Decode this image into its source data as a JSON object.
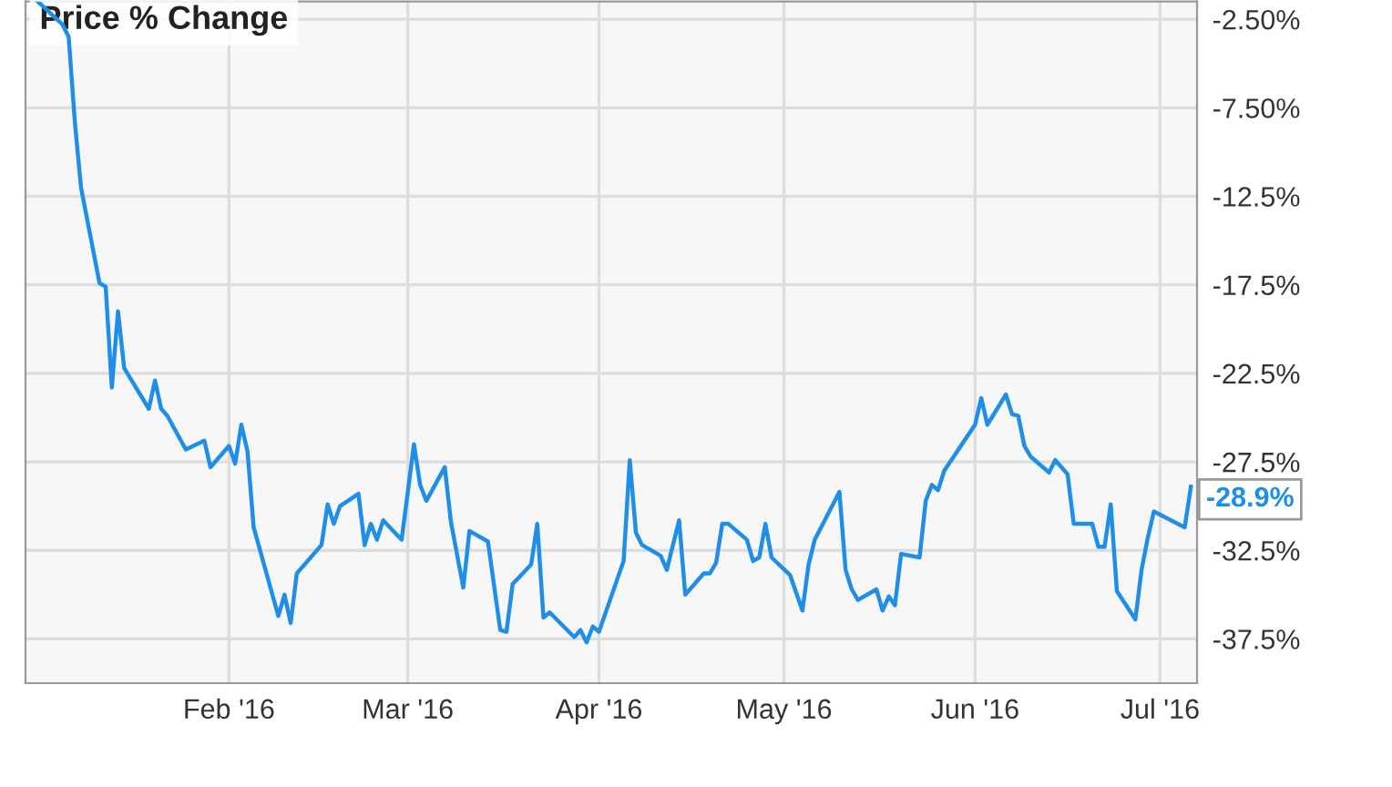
{
  "chart_data": {
    "type": "line",
    "title": "Price % Change",
    "x": [
      "2016-01-01",
      "2016-01-05",
      "2016-01-06",
      "2016-01-07",
      "2016-01-08",
      "2016-01-11",
      "2016-01-12",
      "2016-01-13",
      "2016-01-14",
      "2016-01-15",
      "2016-01-19",
      "2016-01-20",
      "2016-01-21",
      "2016-01-22",
      "2016-01-25",
      "2016-01-28",
      "2016-01-29",
      "2016-02-01",
      "2016-02-02",
      "2016-02-03",
      "2016-02-04",
      "2016-02-05",
      "2016-02-09",
      "2016-02-10",
      "2016-02-11",
      "2016-02-12",
      "2016-02-16",
      "2016-02-17",
      "2016-02-18",
      "2016-02-19",
      "2016-02-22",
      "2016-02-23",
      "2016-02-24",
      "2016-02-25",
      "2016-02-26",
      "2016-02-29",
      "2016-03-02",
      "2016-03-03",
      "2016-03-04",
      "2016-03-07",
      "2016-03-08",
      "2016-03-10",
      "2016-03-11",
      "2016-03-14",
      "2016-03-16",
      "2016-03-17",
      "2016-03-18",
      "2016-03-21",
      "2016-03-22",
      "2016-03-23",
      "2016-03-24",
      "2016-03-28",
      "2016-03-29",
      "2016-03-30",
      "2016-03-31",
      "2016-04-01",
      "2016-04-05",
      "2016-04-06",
      "2016-04-07",
      "2016-04-08",
      "2016-04-11",
      "2016-04-12",
      "2016-04-14",
      "2016-04-15",
      "2016-04-18",
      "2016-04-19",
      "2016-04-20",
      "2016-04-21",
      "2016-04-22",
      "2016-04-25",
      "2016-04-26",
      "2016-04-27",
      "2016-04-28",
      "2016-04-29",
      "2016-05-02",
      "2016-05-04",
      "2016-05-05",
      "2016-05-06",
      "2016-05-10",
      "2016-05-11",
      "2016-05-12",
      "2016-05-13",
      "2016-05-16",
      "2016-05-17",
      "2016-05-18",
      "2016-05-19",
      "2016-05-20",
      "2016-05-23",
      "2016-05-24",
      "2016-05-25",
      "2016-05-26",
      "2016-05-27",
      "2016-06-01",
      "2016-06-02",
      "2016-06-03",
      "2016-06-06",
      "2016-06-07",
      "2016-06-08",
      "2016-06-09",
      "2016-06-10",
      "2016-06-13",
      "2016-06-14",
      "2016-06-16",
      "2016-06-17",
      "2016-06-20",
      "2016-06-21",
      "2016-06-22",
      "2016-06-23",
      "2016-06-24",
      "2016-06-27",
      "2016-06-28",
      "2016-06-29",
      "2016-06-30",
      "2016-07-05",
      "2016-07-06"
    ],
    "series": [
      {
        "color": "#1e8ee8",
        "values": [
          -1.5,
          -2.8,
          -3.5,
          -8.3,
          -12.0,
          -17.4,
          -17.6,
          -23.3,
          -19.0,
          -22.2,
          -24.5,
          -22.9,
          -24.5,
          -24.9,
          -26.8,
          -26.3,
          -27.8,
          -26.6,
          -27.6,
          -25.4,
          -26.9,
          -31.2,
          -36.2,
          -35.0,
          -36.6,
          -33.8,
          -32.2,
          -29.9,
          -31.0,
          -30.0,
          -29.3,
          -32.2,
          -31.0,
          -31.9,
          -30.8,
          -31.9,
          -26.5,
          -28.8,
          -29.7,
          -27.8,
          -30.9,
          -34.6,
          -31.4,
          -32.0,
          -37.0,
          -37.1,
          -34.4,
          -33.3,
          -31.0,
          -36.3,
          -36.0,
          -37.4,
          -37.0,
          -37.7,
          -36.8,
          -37.1,
          -33.1,
          -27.4,
          -31.5,
          -32.2,
          -32.8,
          -33.6,
          -30.8,
          -35.0,
          -33.8,
          -33.8,
          -33.2,
          -31.0,
          -31.0,
          -31.9,
          -33.1,
          -32.9,
          -31.0,
          -32.9,
          -33.9,
          -35.9,
          -33.3,
          -31.9,
          -29.2,
          -33.6,
          -34.7,
          -35.3,
          -34.7,
          -35.9,
          -35.1,
          -35.6,
          -32.7,
          -32.9,
          -29.7,
          -28.8,
          -29.1,
          -28.0,
          -25.4,
          -23.9,
          -25.4,
          -23.7,
          -24.8,
          -24.9,
          -26.6,
          -27.2,
          -28.1,
          -27.4,
          -28.2,
          -31.0,
          -31.0,
          -32.3,
          -32.3,
          -29.9,
          -34.8,
          -36.4,
          -33.6,
          -31.8,
          -30.3,
          -31.2,
          -28.9
        ]
      }
    ],
    "annotations": [
      {
        "text": "-28.9%",
        "x": "2016-07-06",
        "y": -28.9
      }
    ],
    "xlim": [
      "2015-12-30",
      "2016-07-07"
    ],
    "xticks": [
      {
        "value": "2016-02-01",
        "label": "Feb '16"
      },
      {
        "value": "2016-03-01",
        "label": "Mar '16"
      },
      {
        "value": "2016-04-01",
        "label": "Apr '16"
      },
      {
        "value": "2016-05-01",
        "label": "May '16"
      },
      {
        "value": "2016-06-01",
        "label": "Jun '16"
      },
      {
        "value": "2016-07-01",
        "label": "Jul '16"
      }
    ],
    "ylim": [
      -40,
      -1.5
    ],
    "yticks": [
      {
        "value": -2.5,
        "label": "-2.50%"
      },
      {
        "value": -7.5,
        "label": "-7.50%"
      },
      {
        "value": -12.5,
        "label": "-12.5%"
      },
      {
        "value": -17.5,
        "label": "-17.5%"
      },
      {
        "value": -22.5,
        "label": "-22.5%"
      },
      {
        "value": -27.5,
        "label": "-27.5%"
      },
      {
        "value": -32.5,
        "label": "-32.5%"
      },
      {
        "value": -37.5,
        "label": "-37.5%"
      }
    ],
    "grid": true,
    "legend": false,
    "marker": "none",
    "line_style": "solid"
  }
}
